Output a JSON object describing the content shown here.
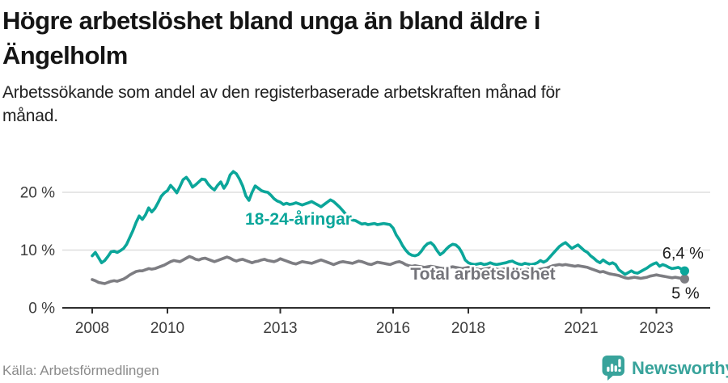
{
  "header": {
    "title_line1": "Högre arbetslöshet bland unga än bland äldre i",
    "title_line2": "Ängelholm",
    "subtitle_line1": "Arbetssökande som andel av den registerbaserade arbetskraften månad för",
    "subtitle_line2": "månad."
  },
  "footer": {
    "source": "Källa: Arbetsförmedlingen",
    "brand": "Newsworthy",
    "brand_color": "#38a39b",
    "brand_icon": "bar-chart-speech-bubble-icon"
  },
  "chart_data": {
    "type": "line",
    "x_unit": "month",
    "x_start": "2008-01",
    "x_end": "2023-10",
    "y_unit": "%",
    "ylim": [
      0,
      25
    ],
    "grid": "horizontal",
    "axis_color": "#2e2e2e",
    "grid_color": "#dedede",
    "tick_label_color": "#3c3c3c",
    "y_ticks": [
      {
        "value": 0,
        "label": "0 %"
      },
      {
        "value": 10,
        "label": "10 %"
      },
      {
        "value": 20,
        "label": "20 %"
      }
    ],
    "x_ticks": [
      {
        "year": 2008,
        "label": "2008"
      },
      {
        "year": 2010,
        "label": "2010"
      },
      {
        "year": 2013,
        "label": "2013"
      },
      {
        "year": 2016,
        "label": "2016"
      },
      {
        "year": 2018,
        "label": "2018"
      },
      {
        "year": 2021,
        "label": "2021"
      },
      {
        "year": 2023,
        "label": "2023"
      }
    ],
    "series": [
      {
        "name": "Total arbetslöshet",
        "color": "#7d7d82",
        "label_color": "#74747a",
        "label_pos": [
          597,
          156
        ],
        "end_value": 5.0,
        "end_label": "5 %",
        "end_label_offset": [
          1,
          24
        ],
        "values": [
          4.9,
          4.7,
          4.4,
          4.3,
          4.2,
          4.4,
          4.6,
          4.7,
          4.6,
          4.8,
          5.0,
          5.3,
          5.7,
          6.0,
          6.3,
          6.4,
          6.4,
          6.6,
          6.8,
          6.7,
          6.8,
          7.0,
          7.2,
          7.4,
          7.7,
          8.0,
          8.2,
          8.1,
          8.0,
          8.3,
          8.6,
          8.9,
          8.7,
          8.4,
          8.3,
          8.5,
          8.6,
          8.4,
          8.2,
          8.0,
          8.2,
          8.4,
          8.6,
          8.8,
          8.6,
          8.3,
          8.1,
          8.3,
          8.4,
          8.2,
          8.0,
          7.8,
          8.0,
          8.1,
          8.3,
          8.4,
          8.2,
          8.1,
          8.0,
          8.2,
          8.5,
          8.3,
          8.1,
          7.9,
          7.7,
          7.6,
          7.8,
          8.0,
          7.9,
          7.8,
          7.7,
          7.9,
          8.1,
          8.3,
          8.1,
          7.9,
          7.7,
          7.5,
          7.7,
          7.9,
          8.0,
          7.9,
          7.8,
          7.7,
          7.9,
          8.1,
          8.0,
          7.8,
          7.6,
          7.5,
          7.7,
          7.9,
          7.8,
          7.7,
          7.6,
          7.5,
          7.7,
          7.9,
          8.0,
          7.8,
          7.5,
          7.3,
          7.2,
          7.3,
          7.2,
          7.1,
          7.0,
          7.1,
          7.2,
          7.1,
          7.0,
          6.9,
          6.8,
          6.9,
          7.0,
          7.1,
          7.0,
          6.9,
          6.8,
          6.9,
          7.0,
          6.9,
          6.8,
          6.7,
          6.6,
          6.7,
          6.8,
          6.9,
          6.8,
          6.7,
          6.6,
          6.7,
          6.8,
          6.9,
          6.8,
          6.7,
          6.6,
          6.5,
          6.6,
          6.7,
          6.6,
          6.5,
          6.6,
          6.7,
          6.8,
          6.9,
          7.1,
          7.3,
          7.4,
          7.5,
          7.4,
          7.5,
          7.4,
          7.3,
          7.2,
          7.3,
          7.2,
          7.1,
          7.0,
          6.8,
          6.6,
          6.4,
          6.2,
          6.3,
          6.1,
          5.9,
          5.8,
          5.7,
          5.6,
          5.4,
          5.2,
          5.1,
          5.2,
          5.3,
          5.2,
          5.1,
          5.2,
          5.3,
          5.5,
          5.6,
          5.7,
          5.6,
          5.5,
          5.4,
          5.3,
          5.2,
          5.3,
          5.2,
          5.1,
          5.0
        ]
      },
      {
        "name": "18-24-åringar",
        "color": "#0ba69a",
        "label_color": "#0ba69a",
        "label_pos": [
          369,
          88
        ],
        "end_value": 6.4,
        "end_label": "6,4 %",
        "end_label_offset": [
          -2,
          -15
        ],
        "values": [
          9.0,
          9.6,
          8.7,
          7.8,
          8.2,
          8.9,
          9.7,
          9.8,
          9.6,
          9.9,
          10.3,
          11.0,
          12.2,
          13.4,
          14.8,
          15.9,
          15.3,
          16.1,
          17.3,
          16.6,
          17.2,
          18.2,
          19.3,
          19.9,
          20.3,
          21.2,
          20.6,
          19.9,
          21.0,
          22.2,
          22.6,
          21.9,
          20.9,
          21.3,
          21.8,
          22.3,
          22.2,
          21.4,
          20.8,
          20.4,
          21.2,
          21.8,
          20.7,
          21.5,
          23.0,
          23.6,
          23.2,
          22.3,
          21.1,
          19.4,
          18.6,
          20.0,
          21.1,
          20.7,
          20.3,
          20.1,
          20.0,
          19.5,
          18.9,
          18.5,
          18.3,
          17.9,
          18.1,
          17.9,
          18.0,
          18.2,
          18.0,
          17.8,
          18.0,
          18.2,
          18.4,
          18.1,
          17.8,
          17.5,
          17.9,
          18.3,
          18.7,
          18.4,
          17.9,
          17.4,
          16.8,
          16.1,
          15.7,
          15.2,
          15.1,
          14.8,
          14.5,
          14.6,
          14.4,
          14.5,
          14.6,
          14.4,
          14.5,
          14.6,
          14.5,
          14.4,
          13.8,
          12.6,
          11.8,
          10.8,
          10.0,
          9.4,
          9.1,
          9.0,
          9.2,
          9.8,
          10.6,
          11.1,
          11.3,
          10.8,
          9.9,
          9.2,
          9.6,
          10.2,
          10.7,
          11.0,
          10.9,
          10.4,
          9.5,
          8.3,
          7.8,
          7.6,
          7.5,
          7.6,
          7.7,
          7.5,
          7.6,
          7.8,
          7.6,
          7.5,
          7.6,
          7.7,
          7.8,
          8.0,
          8.1,
          7.8,
          7.6,
          7.5,
          7.7,
          7.6,
          7.5,
          7.6,
          7.8,
          8.2,
          7.9,
          8.2,
          8.8,
          9.4,
          10.0,
          10.6,
          11.0,
          11.3,
          10.8,
          10.3,
          10.6,
          10.9,
          10.4,
          9.9,
          9.6,
          9.0,
          8.6,
          8.1,
          7.8,
          8.3,
          7.9,
          7.6,
          7.8,
          7.5,
          6.6,
          6.2,
          5.8,
          6.1,
          6.4,
          6.1,
          6.0,
          6.3,
          6.6,
          6.9,
          7.3,
          7.6,
          7.8,
          7.2,
          7.5,
          7.3,
          7.0,
          6.8,
          6.9,
          7.0,
          6.7,
          6.4
        ]
      }
    ]
  }
}
